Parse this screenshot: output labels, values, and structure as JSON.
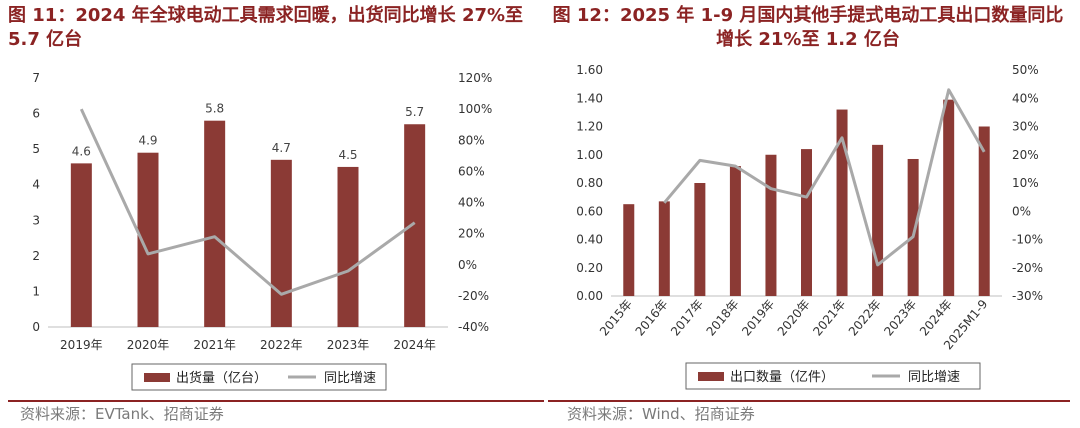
{
  "colors": {
    "bar": "#8b3a35",
    "line": "#a9a9a9",
    "title": "#8b2323"
  },
  "left": {
    "title": "图 11：2024 年全球电动工具需求回暖，出货同比增长 27%至 5.7 亿台",
    "source": "资料来源：EVTank、招商证券",
    "chart_data": {
      "type": "bar",
      "categories": [
        "2019年",
        "2020年",
        "2021年",
        "2022年",
        "2023年",
        "2024年"
      ],
      "series": [
        {
          "name": "出货量（亿台）",
          "type": "bar",
          "axis": "left",
          "values": [
            4.6,
            4.9,
            5.8,
            4.7,
            4.5,
            5.7
          ],
          "labels": [
            "4.6",
            "4.9",
            "5.8",
            "4.7",
            "4.5",
            "5.7"
          ]
        },
        {
          "name": "同比增速",
          "type": "line",
          "axis": "right",
          "values": [
            100,
            7,
            18,
            -19,
            -4,
            27
          ]
        }
      ],
      "ylim": [
        0,
        7
      ],
      "yticks": [
        "0",
        "1",
        "2",
        "3",
        "4",
        "5",
        "6",
        "7"
      ],
      "y2lim": [
        -40,
        120
      ],
      "y2ticks": [
        "-40%",
        "-20%",
        "0%",
        "20%",
        "40%",
        "60%",
        "80%",
        "100%",
        "120%"
      ],
      "legend": [
        "出货量（亿台）",
        "同比增速"
      ]
    }
  },
  "right": {
    "title": "图 12：2025 年 1-9 月国内其他手提式电动工具出口数量同比增长 21%至 1.2 亿台",
    "source": "资料来源：Wind、招商证券",
    "chart_data": {
      "type": "bar",
      "categories": [
        "2015年",
        "2016年",
        "2017年",
        "2018年",
        "2019年",
        "2020年",
        "2021年",
        "2022年",
        "2023年",
        "2024年",
        "2025M1-9"
      ],
      "series": [
        {
          "name": "出口数量（亿件）",
          "type": "bar",
          "axis": "left",
          "values": [
            0.65,
            0.67,
            0.8,
            0.92,
            1.0,
            1.04,
            1.32,
            1.07,
            0.97,
            1.39,
            1.2
          ]
        },
        {
          "name": "同比增速",
          "type": "line",
          "axis": "right",
          "values": [
            null,
            3,
            18,
            16,
            8,
            5,
            26,
            -19,
            -9,
            43,
            21
          ]
        }
      ],
      "ylim": [
        0,
        1.6
      ],
      "yticks": [
        "0.00",
        "0.20",
        "0.40",
        "0.60",
        "0.80",
        "1.00",
        "1.20",
        "1.40",
        "1.60"
      ],
      "y2lim": [
        -30,
        50
      ],
      "y2ticks": [
        "-30%",
        "-20%",
        "-10%",
        "0%",
        "10%",
        "20%",
        "30%",
        "40%",
        "50%"
      ],
      "legend": [
        "出口数量（亿件）",
        "同比增速"
      ]
    }
  }
}
